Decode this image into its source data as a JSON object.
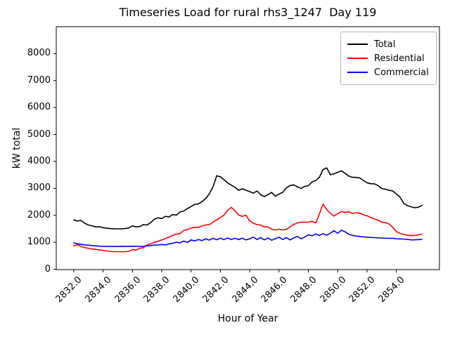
{
  "figure": {
    "title": "Timeseries Load for rural rhs3_1247  Day 119",
    "xlabel": "Hour of Year",
    "ylabel": "kW total"
  },
  "legend": {
    "position": "upper right",
    "entries": [
      {
        "label": "Total",
        "color": "#000000"
      },
      {
        "label": "Residential",
        "color": "#ff0000"
      },
      {
        "label": "Commercial",
        "color": "#0000ff"
      }
    ]
  },
  "chart_data": {
    "type": "line",
    "title": "Timeseries Load for rural rhs3_1247  Day 119",
    "xlabel": "Hour of Year",
    "ylabel": "kW total",
    "grid": false,
    "legend_position": "upper right",
    "xlim": [
      2830.81,
      2856.94
    ],
    "ylim": [
      0,
      9000
    ],
    "x_ticks": [
      "2832.0",
      "2834.0",
      "2836.0",
      "2838.0",
      "2840.0",
      "2842.0",
      "2844.0",
      "2846.0",
      "2848.0",
      "2850.0",
      "2852.0",
      "2854.0"
    ],
    "y_ticks": [
      "0",
      "1000",
      "2000",
      "3000",
      "4000",
      "5000",
      "6000",
      "7000",
      "8000"
    ],
    "x": [
      2832.0,
      2832.25,
      2832.5,
      2832.75,
      2833.0,
      2833.25,
      2833.5,
      2833.75,
      2834.0,
      2834.25,
      2834.5,
      2834.75,
      2835.0,
      2835.25,
      2835.5,
      2835.75,
      2836.0,
      2836.25,
      2836.5,
      2836.75,
      2837.0,
      2837.25,
      2837.5,
      2837.75,
      2838.0,
      2838.25,
      2838.5,
      2838.75,
      2839.0,
      2839.25,
      2839.5,
      2839.75,
      2840.0,
      2840.25,
      2840.5,
      2840.75,
      2841.0,
      2841.25,
      2841.5,
      2841.75,
      2842.0,
      2842.25,
      2842.5,
      2842.75,
      2843.0,
      2843.25,
      2843.5,
      2843.75,
      2844.0,
      2844.25,
      2844.5,
      2844.75,
      2845.0,
      2845.25,
      2845.5,
      2845.75,
      2846.0,
      2846.25,
      2846.5,
      2846.75,
      2847.0,
      2847.25,
      2847.5,
      2847.75,
      2848.0,
      2848.25,
      2848.5,
      2848.75,
      2849.0,
      2849.25,
      2849.5,
      2849.75,
      2850.0,
      2850.25,
      2850.5,
      2850.75,
      2851.0,
      2851.25,
      2851.5,
      2851.75,
      2852.0,
      2852.25,
      2852.5,
      2852.75,
      2853.0,
      2853.25,
      2853.5,
      2853.75,
      2854.0,
      2854.25,
      2854.5,
      2854.75,
      2855.0,
      2855.25,
      2855.5,
      2855.75
    ],
    "series": [
      {
        "name": "Total",
        "color": "#000000",
        "values": [
          1830,
          1790,
          1810,
          1705,
          1640,
          1612,
          1570,
          1578,
          1545,
          1522,
          1508,
          1500,
          1497,
          1500,
          1512,
          1532,
          1610,
          1570,
          1585,
          1655,
          1645,
          1728,
          1858,
          1912,
          1882,
          1962,
          1938,
          2028,
          2005,
          2122,
          2162,
          2248,
          2325,
          2405,
          2420,
          2510,
          2620,
          2800,
          3060,
          3470,
          3430,
          3320,
          3205,
          3120,
          3040,
          2928,
          2985,
          2930,
          2880,
          2825,
          2905,
          2760,
          2695,
          2770,
          2850,
          2712,
          2790,
          2852,
          3020,
          3105,
          3130,
          3062,
          3000,
          3075,
          3100,
          3240,
          3290,
          3410,
          3700,
          3762,
          3505,
          3538,
          3598,
          3650,
          3560,
          3460,
          3410,
          3408,
          3388,
          3295,
          3210,
          3172,
          3170,
          3105,
          2995,
          2972,
          2928,
          2908,
          2795,
          2680,
          2450,
          2360,
          2318,
          2282,
          2300,
          2372
        ]
      },
      {
        "name": "Residential",
        "color": "#ff0000",
        "values": [
          862,
          910,
          848,
          800,
          780,
          752,
          738,
          715,
          700,
          678,
          665,
          652,
          650,
          648,
          652,
          662,
          735,
          712,
          780,
          800,
          900,
          940,
          1000,
          1035,
          1090,
          1135,
          1190,
          1262,
          1300,
          1318,
          1438,
          1472,
          1525,
          1558,
          1548,
          1612,
          1640,
          1658,
          1745,
          1832,
          1920,
          2008,
          2183,
          2298,
          2170,
          2008,
          1962,
          2005,
          1790,
          1712,
          1655,
          1640,
          1572,
          1570,
          1482,
          1458,
          1482,
          1462,
          1482,
          1570,
          1658,
          1720,
          1745,
          1742,
          1745,
          1780,
          1718,
          2050,
          2420,
          2210,
          2080,
          1975,
          2060,
          2140,
          2105,
          2135,
          2072,
          2098,
          2085,
          2020,
          1985,
          1918,
          1870,
          1820,
          1742,
          1730,
          1680,
          1560,
          1400,
          1330,
          1290,
          1262,
          1245,
          1255,
          1275,
          1305
        ]
      },
      {
        "name": "Commercial",
        "color": "#0000ff",
        "values": [
          978,
          942,
          928,
          905,
          895,
          878,
          868,
          855,
          850,
          848,
          850,
          848,
          845,
          852,
          848,
          850,
          855,
          852,
          848,
          852,
          868,
          875,
          895,
          905,
          918,
          900,
          940,
          962,
          1005,
          978,
          1048,
          995,
          1090,
          1048,
          1105,
          1062,
          1130,
          1082,
          1148,
          1095,
          1155,
          1102,
          1160,
          1105,
          1148,
          1098,
          1155,
          1090,
          1131,
          1190,
          1105,
          1175,
          1090,
          1160,
          1075,
          1132,
          1190,
          1105,
          1175,
          1090,
          1160,
          1218,
          1131,
          1190,
          1280,
          1240,
          1310,
          1255,
          1320,
          1262,
          1340,
          1430,
          1330,
          1450,
          1390,
          1300,
          1262,
          1230,
          1218,
          1200,
          1190,
          1180,
          1172,
          1165,
          1158,
          1152,
          1150,
          1148,
          1132,
          1125,
          1120,
          1110,
          1090,
          1092,
          1100,
          1108
        ]
      }
    ]
  }
}
